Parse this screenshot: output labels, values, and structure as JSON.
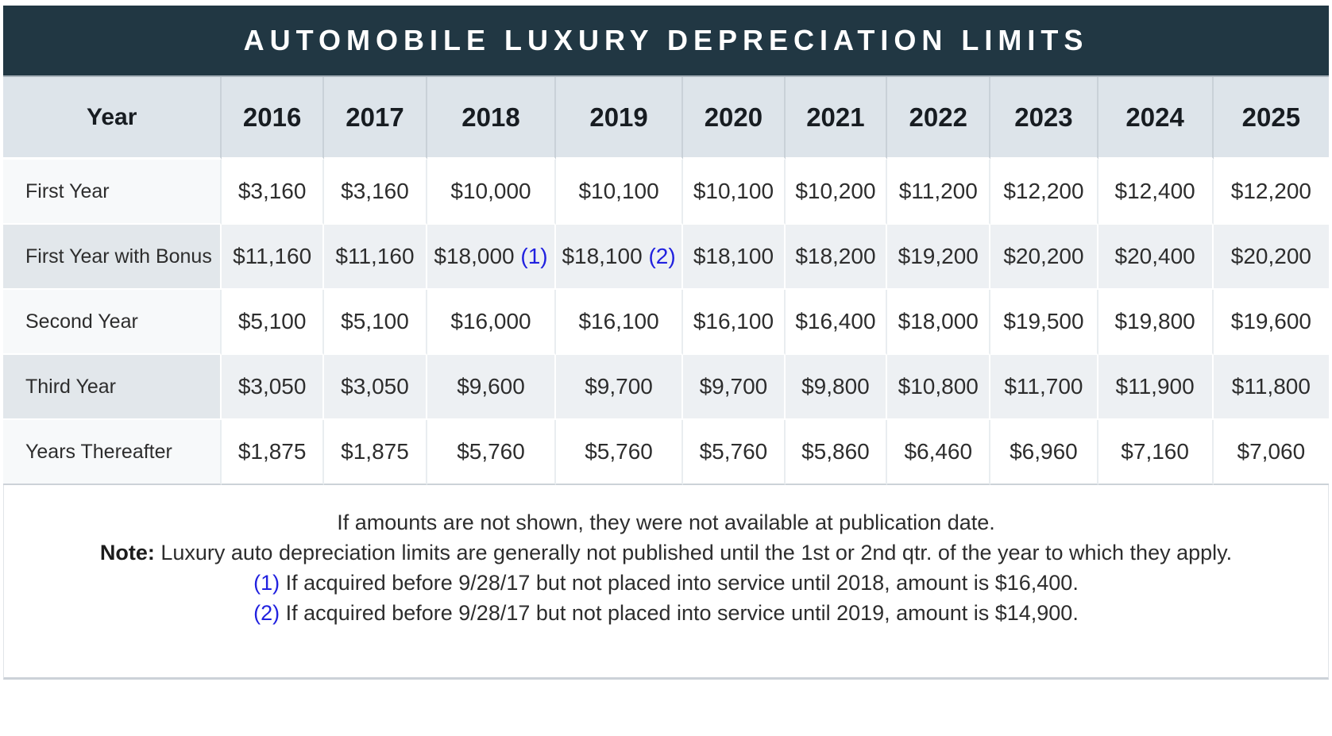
{
  "title": "AUTOMOBILE LUXURY DEPRECIATION LIMITS",
  "table": {
    "header": {
      "label": "Year",
      "years": [
        "2016",
        "2017",
        "2018",
        "2019",
        "2020",
        "2021",
        "2022",
        "2023",
        "2024",
        "2025"
      ]
    },
    "col_widths": [
      "16.5%",
      "7.7%",
      "7.8%",
      "9.7%",
      "9.6%",
      "7.7%",
      "7.7%",
      "7.8%",
      "8.1%",
      "8.7%",
      "8.7%"
    ],
    "rows": [
      {
        "label": "First Year",
        "values": [
          "$3,160",
          "$3,160",
          "$10,000",
          "$10,100",
          "$10,100",
          "$10,200",
          "$11,200",
          "$12,200",
          "$12,400",
          "$12,200"
        ]
      },
      {
        "label": "First Year with Bonus",
        "values": [
          "$11,160",
          "$11,160",
          {
            "v": "$18,000",
            "ref": "(1)"
          },
          {
            "v": "$18,100",
            "ref": "(2)"
          },
          "$18,100",
          "$18,200",
          "$19,200",
          "$20,200",
          "$20,400",
          "$20,200"
        ]
      },
      {
        "label": "Second Year",
        "values": [
          "$5,100",
          "$5,100",
          "$16,000",
          "$16,100",
          "$16,100",
          "$16,400",
          "$18,000",
          "$19,500",
          "$19,800",
          "$19,600"
        ]
      },
      {
        "label": "Third Year",
        "values": [
          "$3,050",
          "$3,050",
          "$9,600",
          "$9,700",
          "$9,700",
          "$9,800",
          "$10,800",
          "$11,700",
          "$11,900",
          "$11,800"
        ]
      },
      {
        "label": "Years Thereafter",
        "values": [
          "$1,875",
          "$1,875",
          "$5,760",
          "$5,760",
          "$5,760",
          "$5,860",
          "$6,460",
          "$6,960",
          "$7,160",
          "$7,060"
        ]
      }
    ]
  },
  "footnotes": [
    {
      "text": "If amounts are not shown, they were not available at publication date."
    },
    {
      "prefix": "Note:",
      "prefix_style": "bold",
      "text": " Luxury auto depreciation limits are generally not published until the 1st or 2nd qtr. of the year to which they apply."
    },
    {
      "prefix": "(1)",
      "prefix_style": "ref",
      "text": " If acquired before 9/28/17 but not placed into service until 2018, amount is $16,400."
    },
    {
      "prefix": "(2)",
      "prefix_style": "ref",
      "text": " If acquired before 9/28/17 but not placed into service until 2019, amount is $14,900."
    }
  ],
  "colors": {
    "title_bar": "#213743",
    "title_text": "#ffffff",
    "header_bg": "#dde4ea",
    "row_white_bg": "#ffffff",
    "row_white_label_bg": "#f7f9fa",
    "row_gray_bg": "#edf0f3",
    "row_gray_label_bg": "#e2e7eb",
    "footnote_ref": "#2121df",
    "text": "#2d2d2d"
  }
}
